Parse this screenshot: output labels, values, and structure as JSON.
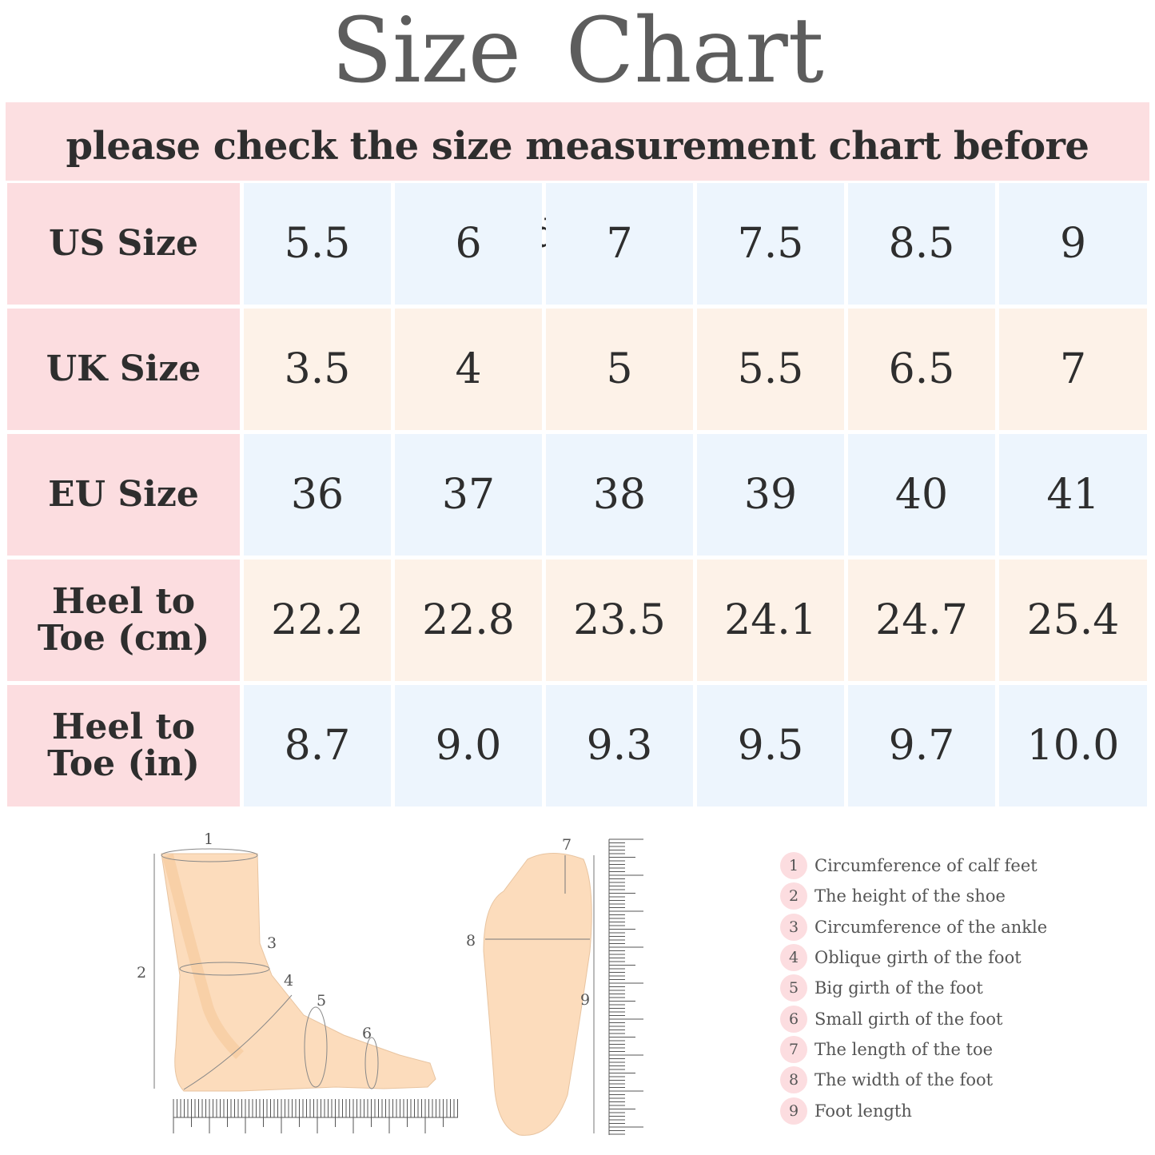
{
  "header": {
    "title": "Size Chart",
    "subtitle": "please check the size measurement chart before ordering"
  },
  "table": {
    "rows": [
      {
        "label": "US Size",
        "cells": [
          "5.5",
          "6",
          "7",
          "7.5",
          "8.5",
          "9"
        ]
      },
      {
        "label": "UK Size",
        "cells": [
          "3.5",
          "4",
          "5",
          "5.5",
          "6.5",
          "7"
        ]
      },
      {
        "label": "EU Size",
        "cells": [
          "36",
          "37",
          "38",
          "39",
          "40",
          "41"
        ]
      },
      {
        "label": "Heel to Toe (cm)",
        "cells": [
          "22.2",
          "22.8",
          "23.5",
          "24.1",
          "24.7",
          "25.4"
        ]
      },
      {
        "label": "Heel to Toe (in)",
        "cells": [
          "8.7",
          "9.0",
          "9.3",
          "9.5",
          "9.7",
          "10.0"
        ]
      }
    ]
  },
  "legend": {
    "items": [
      {
        "number": "1",
        "label": "Circumference of calf feet"
      },
      {
        "number": "2",
        "label": "The height of the shoe"
      },
      {
        "number": "3",
        "label": "Circumference of the ankle"
      },
      {
        "number": "4",
        "label": "Oblique girth of the foot"
      },
      {
        "number": "5",
        "label": "Big girth of the foot"
      },
      {
        "number": "6",
        "label": "Small girth of the foot"
      },
      {
        "number": "7",
        "label": "The length of the toe"
      },
      {
        "number": "8",
        "label": "The width of the foot"
      },
      {
        "number": "9",
        "label": "Foot length"
      }
    ]
  }
}
